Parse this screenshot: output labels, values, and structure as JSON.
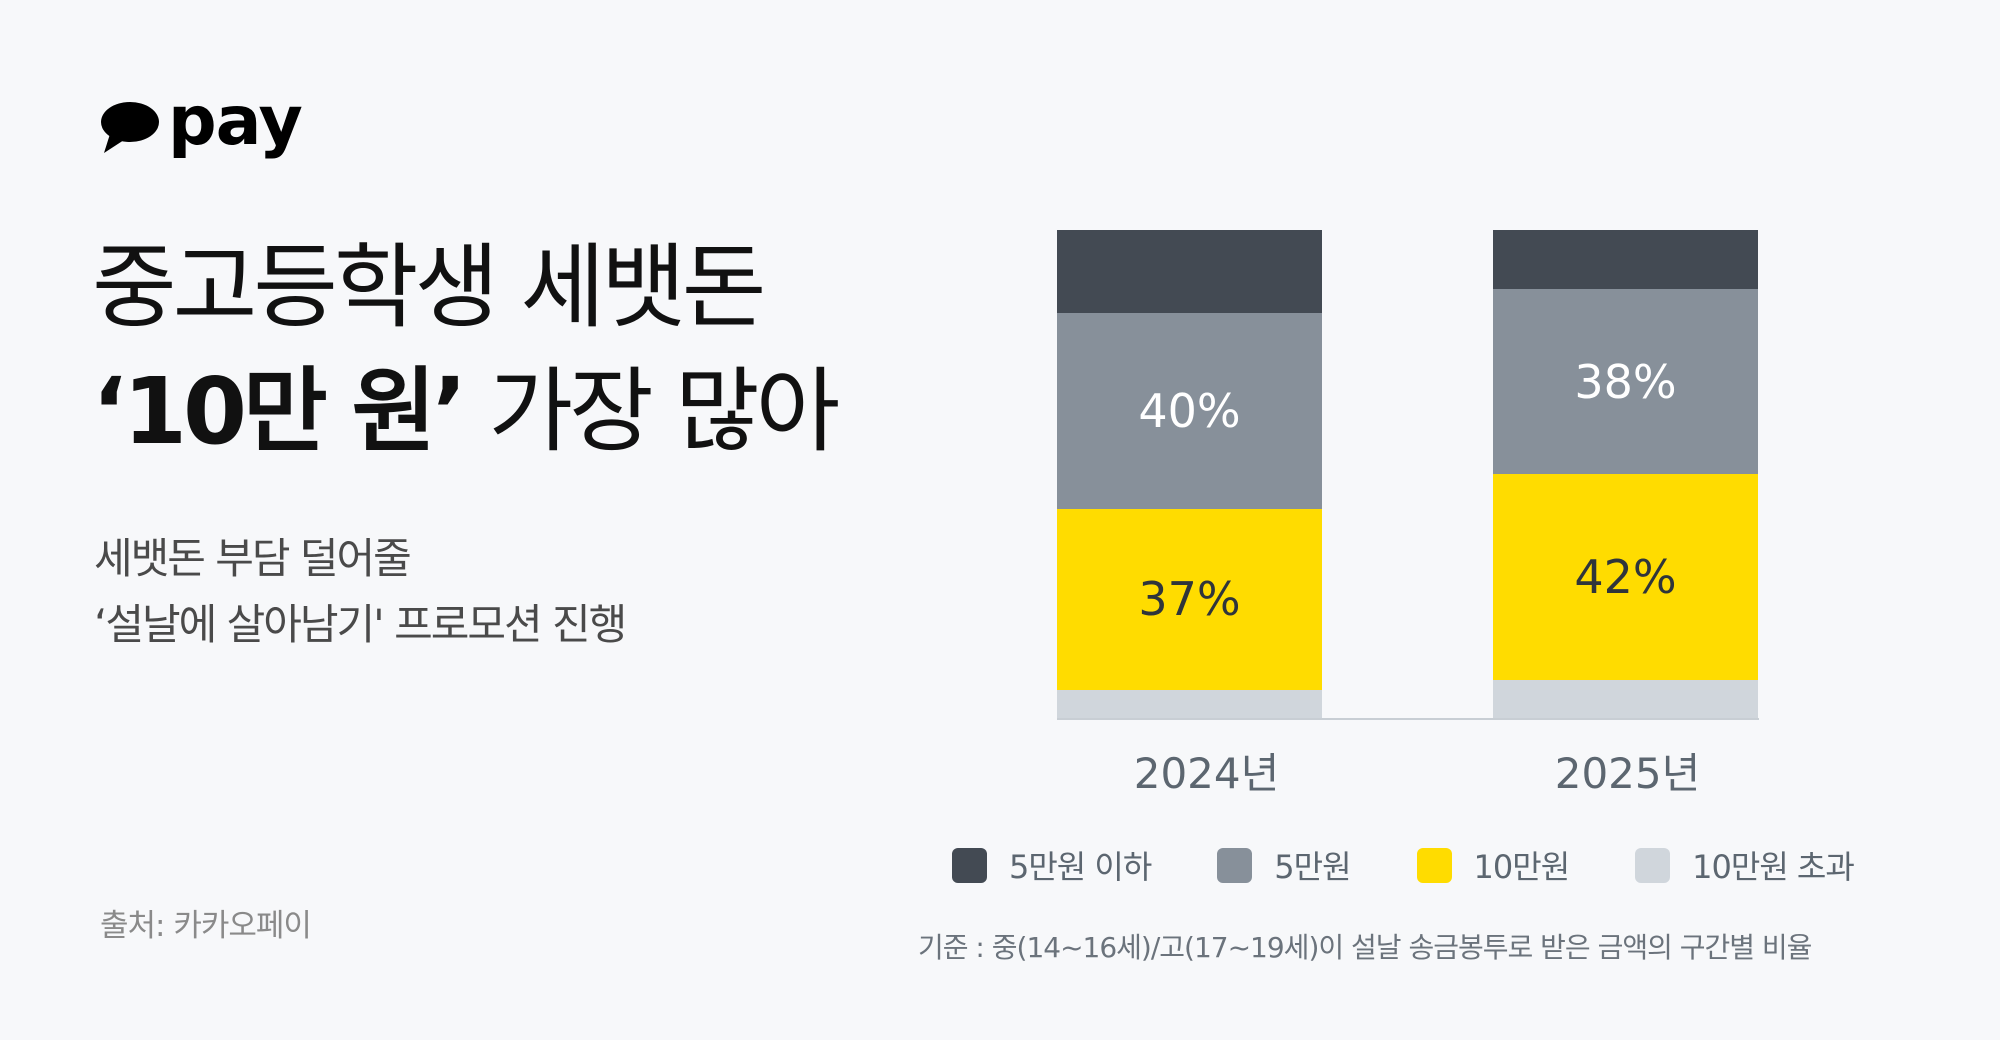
{
  "logo": {
    "icon": "speech-bubble-icon",
    "text": "pay"
  },
  "title": {
    "line1": "중고등학생 세뱃돈",
    "line2_bold": "‘10만 원’",
    "line2_rest": " 가장 많아"
  },
  "subtitle": {
    "line1": "세뱃돈 부담 덜어줄",
    "line2": "‘설날에 살아남기' 프로모션 진행"
  },
  "source": "출처: 카카오페이",
  "colors": {
    "under_5": "#434a53",
    "5man": "#87909a",
    "10man": "#ffdc00",
    "over_10": "#d0d6dc",
    "background": "#f7f8fa"
  },
  "chart_data": {
    "type": "bar",
    "stacked": true,
    "orientation": "vertical",
    "categories": [
      "2024년",
      "2025년"
    ],
    "series": [
      {
        "name": "10만원 초과",
        "color": "#d0d6dc",
        "values": [
          6,
          8
        ],
        "labeled": false
      },
      {
        "name": "10만원",
        "color": "#ffdc00",
        "values": [
          37,
          42
        ],
        "labels": [
          "37%",
          "42%"
        ]
      },
      {
        "name": "5만원",
        "color": "#87909a",
        "values": [
          40,
          38
        ],
        "labels": [
          "40%",
          "38%"
        ]
      },
      {
        "name": "5만원 이하",
        "color": "#434a53",
        "values": [
          17,
          12
        ],
        "labeled": false
      }
    ],
    "ylim": [
      0,
      100
    ],
    "unit": "%",
    "grid": false,
    "y_axis_visible": false,
    "legend": [
      "5만원 이하",
      "5만원",
      "10만원",
      "10만원 초과"
    ],
    "legend_position": "bottom",
    "footnote": "기준 : 중(14~16세)/고(17~19세)이 설날 송금봉투로 받은 금액의 구간별 비율"
  }
}
